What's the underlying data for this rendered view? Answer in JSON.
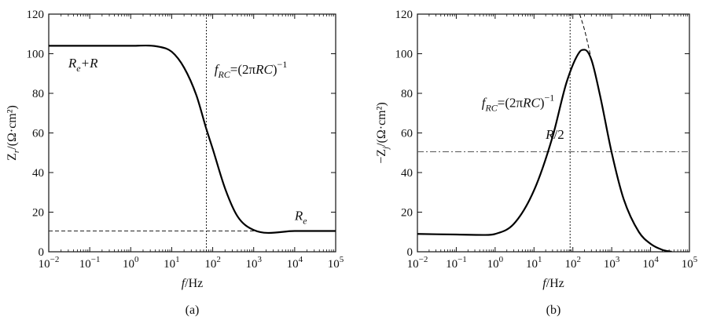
{
  "chart_data": [
    {
      "type": "line",
      "panel_label": "(a)",
      "xlabel": "f/Hz",
      "ylabel": "Z_r/(Ω·cm²)",
      "xscale": "log",
      "xlim": [
        0.01,
        100000
      ],
      "ylim": [
        0,
        120
      ],
      "x_ticks": [
        {
          "value": 0.01,
          "base": "10",
          "exp": "−2"
        },
        {
          "value": 0.1,
          "base": "10",
          "exp": "−1"
        },
        {
          "value": 1,
          "base": "10",
          "exp": "0"
        },
        {
          "value": 10,
          "base": "10",
          "exp": "1"
        },
        {
          "value": 100,
          "base": "10",
          "exp": "2"
        },
        {
          "value": 1000,
          "base": "10",
          "exp": "3"
        },
        {
          "value": 10000,
          "base": "10",
          "exp": "4"
        },
        {
          "value": 100000,
          "base": "10",
          "exp": "5"
        }
      ],
      "y_ticks": [
        0,
        20,
        40,
        60,
        80,
        100,
        120
      ],
      "series": [
        {
          "style": "solid",
          "x": [
            0.01,
            0.1,
            1,
            5,
            10,
            20,
            40,
            70,
            100,
            200,
            400,
            1000,
            10000,
            100000
          ],
          "y": [
            104,
            104,
            104,
            103.5,
            101,
            93,
            79,
            62,
            52,
            32,
            18,
            11,
            10.5,
            10.5
          ]
        }
      ],
      "reference_lines": [
        {
          "orientation": "vertical",
          "value": 70,
          "style": "dotted"
        },
        {
          "orientation": "horizontal",
          "value": 10.5,
          "style": "dashed",
          "x_from": 0.01,
          "x_to": 1000
        }
      ],
      "annotations": [
        {
          "id": "re_plus_r",
          "x": 0.03,
          "y": 93
        },
        {
          "id": "frc",
          "x": 110,
          "y": 90
        },
        {
          "id": "re",
          "x": 10000,
          "y": 16
        }
      ],
      "annot_text": {
        "re_plus_r": {
          "a": "R",
          "a_sub": "e",
          "b": "+R"
        },
        "frc": {
          "f": "f",
          "f_sub": "RC",
          "eq": "=(2π",
          "rc": "RC",
          "close": ")",
          "sup": "−1"
        },
        "re": {
          "a": "R",
          "a_sub": "e"
        }
      }
    },
    {
      "type": "line",
      "panel_label": "(b)",
      "xlabel": "f/Hz",
      "ylabel": "−Z_j/(Ω·cm²)",
      "xscale": "log",
      "xlim": [
        0.01,
        100000
      ],
      "ylim": [
        0,
        120
      ],
      "x_ticks": [
        {
          "value": 0.01,
          "base": "10",
          "exp": "−2"
        },
        {
          "value": 0.1,
          "base": "10",
          "exp": "−1"
        },
        {
          "value": 1,
          "base": "10",
          "exp": "0"
        },
        {
          "value": 10,
          "base": "10",
          "exp": "1"
        },
        {
          "value": 100,
          "base": "10",
          "exp": "2"
        },
        {
          "value": 1000,
          "base": "10",
          "exp": "3"
        },
        {
          "value": 10000,
          "base": "10",
          "exp": "4"
        },
        {
          "value": 100000,
          "base": "10",
          "exp": "5"
        }
      ],
      "y_ticks": [
        0,
        20,
        40,
        60,
        80,
        100,
        120
      ],
      "series": [
        {
          "style": "solid",
          "x": [
            0.01,
            0.1,
            0.5,
            1,
            3,
            10,
            30,
            70,
            150,
            200,
            300,
            500,
            1000,
            2000,
            5000,
            10000,
            20000,
            35000
          ],
          "y": [
            9,
            8.7,
            8.5,
            9,
            14,
            31,
            58,
            86,
            101,
            102,
            97,
            79,
            50,
            27,
            10,
            4,
            1,
            0
          ]
        },
        {
          "style": "dashed",
          "x": [
            150,
            200,
            250,
            300
          ],
          "y": [
            120,
            112,
            104,
            97
          ]
        }
      ],
      "reference_lines": [
        {
          "orientation": "vertical",
          "value": 85,
          "style": "dotted"
        },
        {
          "orientation": "horizontal",
          "value": 50.5,
          "style": "dashdot",
          "x_from": 0.01,
          "x_to": 100000
        }
      ],
      "annotations": [
        {
          "id": "frc",
          "x": 0.45,
          "y": 73
        },
        {
          "id": "r_half",
          "x": 20,
          "y": 57
        }
      ],
      "annot_text": {
        "frc": {
          "f": "f",
          "f_sub": "RC",
          "eq": "=(2π",
          "rc": "RC",
          "close": ")",
          "sup": "−1"
        },
        "r_half": {
          "a": "R",
          "b": "/2"
        }
      }
    }
  ]
}
